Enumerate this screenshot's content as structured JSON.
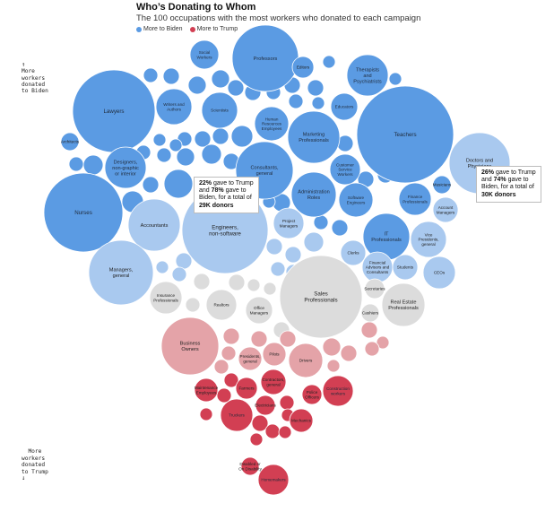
{
  "header": {
    "title": "Who’s Donating to Whom",
    "subtitle": "The 100 occupations with the most workers who donated to each campaign"
  },
  "legend": {
    "biden_label": "More to Biden",
    "trump_label": "More to Trump"
  },
  "axis_notes": {
    "top": "More\nworkers\ndonated\nto Biden",
    "top_arrow": "↑",
    "bottom": "More\nworkers\ndonated\nto Trump",
    "bottom_arrow": "↓"
  },
  "callouts": {
    "engineers": {
      "trump_pct": "22%",
      "biden_pct": "78%",
      "total": "29K donors",
      "l1": " gave to Trump",
      "l2": "and ",
      "l2b": " gave to",
      "l3": "Biden, for a total of"
    },
    "doctors": {
      "trump_pct": "26%",
      "biden_pct": "74%",
      "total": "30K donors",
      "l1": " gave to Trump",
      "l2": "and ",
      "l2b": " gave to",
      "l3": "Biden, for a total of"
    }
  },
  "chart_data": {
    "type": "bubble",
    "title": "Who’s Donating to Whom",
    "legend": [
      "More to Biden",
      "More to Trump"
    ],
    "colors": {
      "biden": "#5b9be3",
      "biden_light": "#a9c9ef",
      "neutral": "#dcdcdc",
      "trump_light": "#e4a3a8",
      "trump": "#d23f53"
    },
    "bubbles": [
      {
        "name": "Professors",
        "lean": "biden",
        "lines": [
          "Professors"
        ]
      },
      {
        "name": "Social Workers",
        "lean": "biden",
        "lines": [
          "Social",
          "Workers"
        ]
      },
      {
        "name": "Editors",
        "lean": "biden",
        "lines": [
          "Editors"
        ]
      },
      {
        "name": "Therapists and Psychiatrists",
        "lean": "biden",
        "lines": [
          "Therapists",
          "and",
          "Psychiatrists"
        ]
      },
      {
        "name": "Librarians",
        "lean": "biden",
        "lines": []
      },
      {
        "name": "Curators",
        "lean": "biden",
        "lines": []
      },
      {
        "name": "Lawyers",
        "lean": "biden",
        "lines": [
          "Lawyers"
        ]
      },
      {
        "name": "Teachers",
        "lean": "biden",
        "lines": [
          "Teachers"
        ]
      },
      {
        "name": "Doctors and Physicians",
        "lean": "biden_light",
        "lines": [
          "Doctors and",
          "Physicians"
        ]
      },
      {
        "name": "Writers and Authors",
        "lean": "biden",
        "lines": [
          "Writers and",
          "Authors"
        ]
      },
      {
        "name": "Scientists",
        "lean": "biden",
        "lines": [
          "Scientists"
        ]
      },
      {
        "name": "Human Resources Employees",
        "lean": "biden",
        "lines": [
          "Human",
          "Resources",
          "Employees"
        ]
      },
      {
        "name": "Marketing Professionals",
        "lean": "biden",
        "lines": [
          "Marketing",
          "Professionals"
        ]
      },
      {
        "name": "Educators",
        "lean": "biden",
        "lines": [
          "Educators"
        ]
      },
      {
        "name": "Architects",
        "lean": "biden",
        "lines": [
          "Architects"
        ]
      },
      {
        "name": "Designers, non-graphic or interior",
        "lean": "biden",
        "lines": [
          "Designers,",
          "non-graphic",
          "or interior"
        ]
      },
      {
        "name": "Nurses",
        "lean": "biden",
        "lines": [
          "Nurses"
        ]
      },
      {
        "name": "Consultants, general",
        "lean": "biden",
        "lines": [
          "Consultants,",
          "general"
        ]
      },
      {
        "name": "Administration Roles",
        "lean": "biden",
        "lines": [
          "Administration",
          "Roles"
        ]
      },
      {
        "name": "Customer Service Workers",
        "lean": "biden",
        "lines": [
          "Customer",
          "Service",
          "Workers"
        ]
      },
      {
        "name": "Software Engineers",
        "lean": "biden",
        "lines": [
          "Software",
          "Engineers"
        ]
      },
      {
        "name": "Finance Professionals",
        "lean": "biden",
        "lines": [
          "Finance",
          "Professionals"
        ]
      },
      {
        "name": "Musicians",
        "lean": "biden",
        "lines": [
          "Musicians"
        ]
      },
      {
        "name": "Account Managers",
        "lean": "biden_light",
        "lines": [
          "Account",
          "Managers"
        ]
      },
      {
        "name": "Accountants",
        "lean": "biden_light",
        "lines": [
          "Accountants"
        ]
      },
      {
        "name": "Engineers, non-software",
        "lean": "biden_light",
        "lines": [
          "Engineers,",
          "non-software"
        ]
      },
      {
        "name": "Project Managers",
        "lean": "biden_light",
        "lines": [
          "Project",
          "Managers"
        ]
      },
      {
        "name": "IT Professionals",
        "lean": "biden",
        "lines": [
          "IT",
          "Professionals"
        ]
      },
      {
        "name": "Vice Presidents, general",
        "lean": "biden_light",
        "lines": [
          "Vice",
          "Presidents,",
          "general"
        ]
      },
      {
        "name": "Managers, general",
        "lean": "biden_light",
        "lines": [
          "Managers,",
          "general"
        ]
      },
      {
        "name": "Sales Professionals",
        "lean": "neutral",
        "lines": [
          "Sales",
          "Professionals"
        ]
      },
      {
        "name": "Clerks",
        "lean": "biden_light",
        "lines": [
          "Clerks"
        ]
      },
      {
        "name": "Financial Advisors and Consultants",
        "lean": "biden_light",
        "lines": [
          "Financial",
          "Advisors and",
          "Consultants"
        ]
      },
      {
        "name": "Students",
        "lean": "biden_light",
        "lines": [
          "Students"
        ]
      },
      {
        "name": "CEOs",
        "lean": "biden_light",
        "lines": [
          "CEOs"
        ]
      },
      {
        "name": "Insurance Professionals",
        "lean": "neutral",
        "lines": [
          "Insurance",
          "Professionals"
        ]
      },
      {
        "name": "Realtors",
        "lean": "neutral",
        "lines": [
          "Realtors"
        ]
      },
      {
        "name": "Office Managers",
        "lean": "neutral",
        "lines": [
          "Office",
          "Managers"
        ]
      },
      {
        "name": "Real Estate Professionals",
        "lean": "neutral",
        "lines": [
          "Real Estate",
          "Professionals"
        ]
      },
      {
        "name": "Secretaries",
        "lean": "neutral",
        "lines": [
          "Secretaries"
        ]
      },
      {
        "name": "Cashiers",
        "lean": "neutral",
        "lines": [
          "Cashiers"
        ]
      },
      {
        "name": "Business Owners",
        "lean": "trump_light",
        "lines": [
          "Business",
          "Owners"
        ]
      },
      {
        "name": "Drivers",
        "lean": "trump_light",
        "lines": [
          "Drivers"
        ]
      },
      {
        "name": "Pilots",
        "lean": "trump_light",
        "lines": [
          "Pilots"
        ]
      },
      {
        "name": "Presidents, general",
        "lean": "trump_light",
        "lines": [
          "Presidents,",
          "general"
        ]
      },
      {
        "name": "Contractors, general",
        "lean": "trump",
        "lines": [
          "Contractors,",
          "general"
        ]
      },
      {
        "name": "Farmers",
        "lean": "trump",
        "lines": [
          "Farmers"
        ]
      },
      {
        "name": "Construction workers",
        "lean": "trump",
        "lines": [
          "Construction",
          "workers"
        ]
      },
      {
        "name": "Truckers",
        "lean": "trump",
        "lines": [
          "Truckers"
        ]
      },
      {
        "name": "Mechanics",
        "lean": "trump",
        "lines": [
          "Mechanics"
        ]
      },
      {
        "name": "Electricians",
        "lean": "trump",
        "lines": [
          "Electricians"
        ]
      },
      {
        "name": "Police Officers",
        "lean": "trump",
        "lines": [
          "Police",
          "Officers"
        ]
      },
      {
        "name": "Maintenance Employees",
        "lean": "trump",
        "lines": [
          "Maintenance",
          "Employees"
        ]
      },
      {
        "name": "Homemakers",
        "lean": "trump",
        "lines": [
          "Homemakers"
        ]
      },
      {
        "name": "Disabled or On Disability",
        "lean": "trump",
        "lines": [
          "Disabled or",
          "On Disability"
        ]
      }
    ]
  }
}
